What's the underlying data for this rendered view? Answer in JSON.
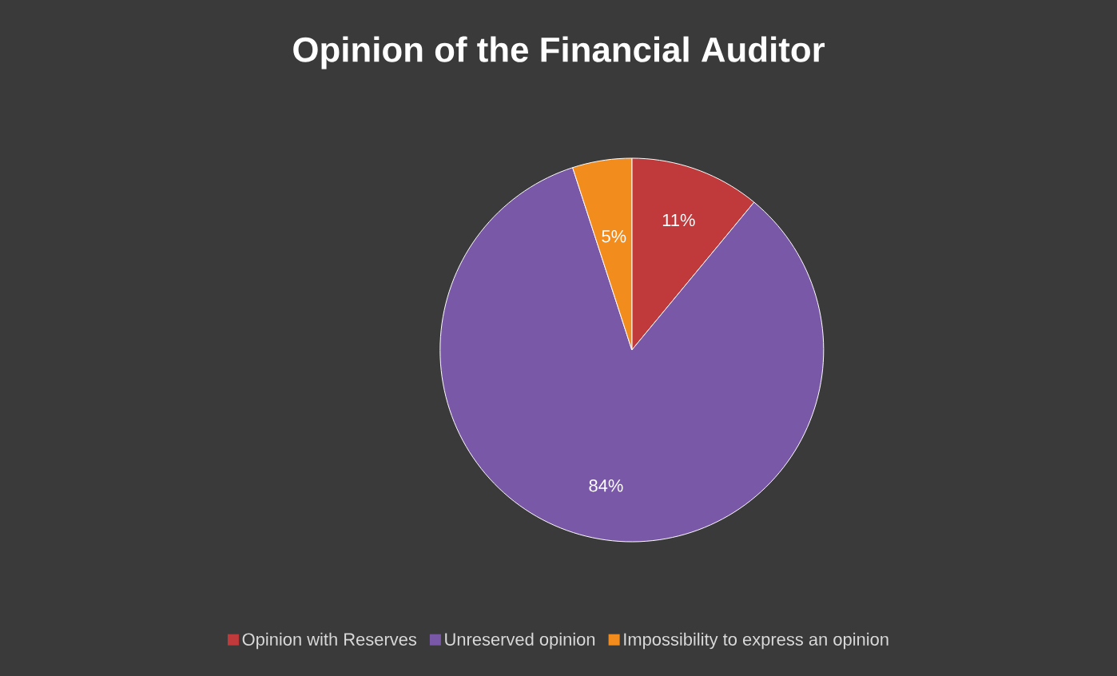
{
  "chart_data": {
    "type": "pie",
    "title": "Opinion of the Financial Auditor",
    "categories": [
      "Opinion with Reserves",
      "Unreserved opinion",
      "Impossibility to express an opinion"
    ],
    "values": [
      11,
      84,
      5
    ],
    "value_labels": [
      "11%",
      "84%",
      "5%"
    ],
    "colors": [
      "#c0393b",
      "#7a58a8",
      "#f28c1c"
    ],
    "legend": "bottom"
  }
}
